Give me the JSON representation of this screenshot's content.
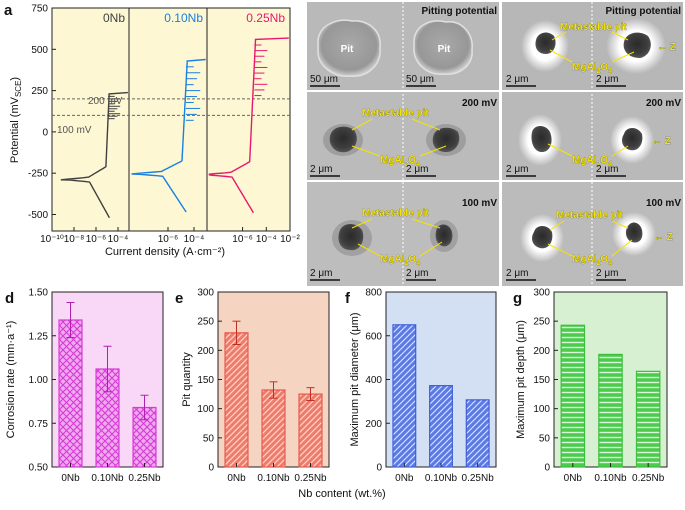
{
  "panel_labels": {
    "a": "a",
    "b": "b",
    "c": "c",
    "d": "d",
    "e": "e",
    "f": "f",
    "g": "g"
  },
  "chart_data": [
    {
      "id": "a",
      "type": "line",
      "xlabel": "Current density (A·cm⁻²)",
      "ylabel": "Potential (mV",
      "ylabel_sub": "SCE",
      "ylabel_end": ")",
      "x_scale": "log",
      "xlim": [
        1e-10,
        0.01
      ],
      "ylim": [
        -600,
        750
      ],
      "x_ticks": [
        "10⁻¹⁰",
        "10⁻⁸",
        "10⁻⁶",
        "10⁻⁴",
        "10⁻⁶",
        "10⁻⁴",
        "10⁻⁶",
        "10⁻⁴",
        "10⁻²"
      ],
      "y_ticks": [
        -500,
        -250,
        0,
        250,
        500,
        750
      ],
      "reference_lines": [
        {
          "label": "200 mV",
          "value": 200
        },
        {
          "label": "100 mV",
          "value": 100
        }
      ],
      "series": [
        {
          "name": "0Nb",
          "color": "#404040",
          "corrosion_potential": -290,
          "corrosion_current": 2e-07,
          "pitting_potential": 230
        },
        {
          "name": "0.10Nb",
          "color": "#1a7fe0",
          "corrosion_potential": -255,
          "corrosion_current": 3e-07,
          "pitting_potential": 430
        },
        {
          "name": "0.25Nb",
          "color": "#e6196e",
          "corrosion_potential": -260,
          "corrosion_current": 1e-07,
          "pitting_potential": 560
        }
      ]
    },
    {
      "id": "d",
      "type": "bar",
      "ylabel": "Corrosion rate (mm·a⁻¹)",
      "categories": [
        "0Nb",
        "0.10Nb",
        "0.25Nb"
      ],
      "values": [
        1.34,
        1.06,
        0.84
      ],
      "errors": [
        0.1,
        0.13,
        0.07
      ],
      "ylim": [
        0.5,
        1.5
      ],
      "y_ticks": [
        "0.50",
        "0.75",
        "1.00",
        "1.25",
        "1.50"
      ],
      "color": "#d63ad6",
      "background": "#f8d8f6"
    },
    {
      "id": "e",
      "type": "bar",
      "ylabel": "Pit quantity",
      "categories": [
        "0Nb",
        "0.10Nb",
        "0.25Nb"
      ],
      "values": [
        230,
        132,
        125
      ],
      "errors": [
        20,
        14,
        11
      ],
      "ylim": [
        0,
        300
      ],
      "y_ticks": [
        "0",
        "50",
        "100",
        "150",
        "200",
        "250",
        "300"
      ],
      "color": "#e8584a",
      "background": "#f6d4c2"
    },
    {
      "id": "f",
      "type": "bar",
      "ylabel": "Maximum pit diameter (μm)",
      "categories": [
        "0Nb",
        "0.10Nb",
        "0.25Nb"
      ],
      "values": [
        650,
        372,
        307
      ],
      "ylim": [
        0,
        800
      ],
      "y_ticks": [
        "0",
        "200",
        "400",
        "600",
        "800"
      ],
      "color": "#4060d8",
      "background": "#d3e0f4"
    },
    {
      "id": "g",
      "type": "bar",
      "ylabel": "Maximum pit depth (μm)",
      "categories": [
        "0Nb",
        "0.10Nb",
        "0.25Nb"
      ],
      "values": [
        243,
        193,
        164
      ],
      "ylim": [
        0,
        300
      ],
      "y_ticks": [
        "0",
        "50",
        "100",
        "150",
        "200",
        "250",
        "300"
      ],
      "color": "#3cbf3c",
      "background": "#d8f0d2"
    }
  ],
  "shared_xlabel": "Nb content (wt.%)",
  "micrographs": {
    "b_top_title": "Pitting potential",
    "c_top_title": "Pitting potential",
    "b_mid_title": "200 mV",
    "c_mid_title": "200 mV",
    "b_bot_title": "100 mV",
    "c_bot_title": "100 mV",
    "pit": "Pit",
    "metastable": "Metastable pit",
    "mgal": "MgAl",
    "mgal_sub1": "2",
    "mgal_o": "O",
    "mgal_sub2": "4",
    "z": "Z",
    "scale_50": "50 μm",
    "scale_2": "2 μm"
  },
  "colors": {
    "plot_a_bg": "#fdf7d4",
    "sem_bg": "#b9b9b9"
  }
}
